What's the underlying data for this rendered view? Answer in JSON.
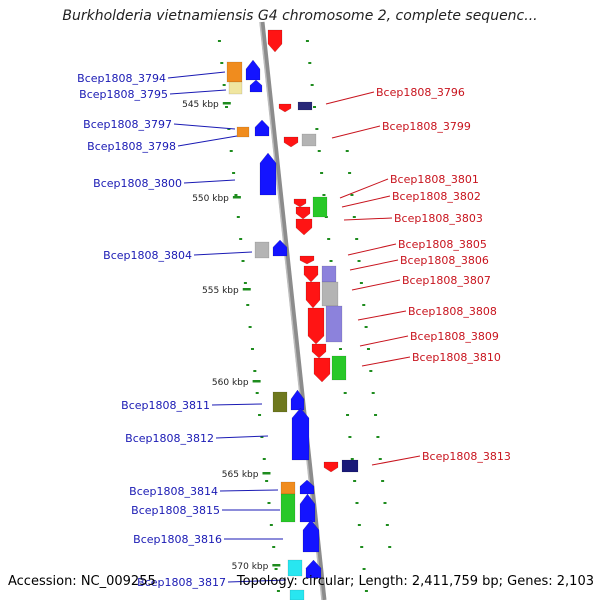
{
  "title": "Burkholderia vietnamiensis G4 chromosome 2, complete sequenc...",
  "footer": {
    "accession": "Accession: NC_009255",
    "topology": "Topology: circular; Length: 2,411,759 bp; Genes: 2,103"
  },
  "colors": {
    "forward_genes": "#1414ff",
    "reverse_genes": "#ff1414",
    "backbone": "#8c8c8c",
    "left_labels": "#1a1ab4",
    "right_labels": "#c8141e",
    "ticks": "#1e8c1e"
  },
  "kbp_labels": [
    "545 kbp",
    "550 kbp",
    "555 kbp",
    "560 kbp",
    "565 kbp",
    "570 kbp"
  ],
  "left_genes": [
    {
      "label": "Bcep1808_3794",
      "colors": [
        "#f08c1e",
        "#1414ff"
      ]
    },
    {
      "label": "Bcep1808_3795",
      "colors": [
        "#f0e6a0",
        "#1414ff"
      ]
    },
    {
      "label": "Bcep1808_3797",
      "colors": [
        "#f08c1e",
        "#1414ff"
      ]
    },
    {
      "label": "Bcep1808_3798",
      "colors": [
        "#1414ff"
      ]
    },
    {
      "label": "Bcep1808_3800",
      "colors": [
        "#1414ff"
      ]
    },
    {
      "label": "Bcep1808_3804",
      "colors": [
        "#b4b4b4",
        "#1414ff"
      ]
    },
    {
      "label": "Bcep1808_3811",
      "colors": [
        "#6e781e"
      ]
    },
    {
      "label": "Bcep1808_3812",
      "colors": [
        "#1414ff"
      ]
    },
    {
      "label": "Bcep1808_3814",
      "colors": [
        "#f08c1e",
        "#28c828"
      ]
    },
    {
      "label": "Bcep1808_3815",
      "colors": [
        "#28c828",
        "#1414ff"
      ]
    },
    {
      "label": "Bcep1808_3816",
      "colors": [
        "#1414ff"
      ]
    },
    {
      "label": "Bcep1808_3817",
      "colors": [
        "#28e6f0",
        "#1414ff"
      ]
    }
  ],
  "right_genes": [
    {
      "label": "Bcep1808_3796",
      "colors": [
        "#ff1414",
        "#282878"
      ]
    },
    {
      "label": "Bcep1808_3799",
      "colors": [
        "#ff1414",
        "#b4b4b4"
      ]
    },
    {
      "label": "Bcep1808_3801",
      "colors": [
        "#28c828"
      ]
    },
    {
      "label": "Bcep1808_3802",
      "colors": [
        "#ff1414"
      ]
    },
    {
      "label": "Bcep1808_3803",
      "colors": [
        "#ff1414"
      ]
    },
    {
      "label": "Bcep1808_3805",
      "colors": [
        "#ff1414"
      ]
    },
    {
      "label": "Bcep1808_3806",
      "colors": [
        "#8c82dc"
      ]
    },
    {
      "label": "Bcep1808_3807",
      "colors": [
        "#b4b4b4"
      ]
    },
    {
      "label": "Bcep1808_3808",
      "colors": [
        "#8c82dc"
      ]
    },
    {
      "label": "Bcep1808_3809",
      "colors": [
        "#ff1414"
      ]
    },
    {
      "label": "Bcep1808_3810",
      "colors": [
        "#28c828"
      ]
    },
    {
      "label": "Bcep1808_3813",
      "colors": [
        "#ff1414",
        "#1a1a78"
      ]
    }
  ]
}
